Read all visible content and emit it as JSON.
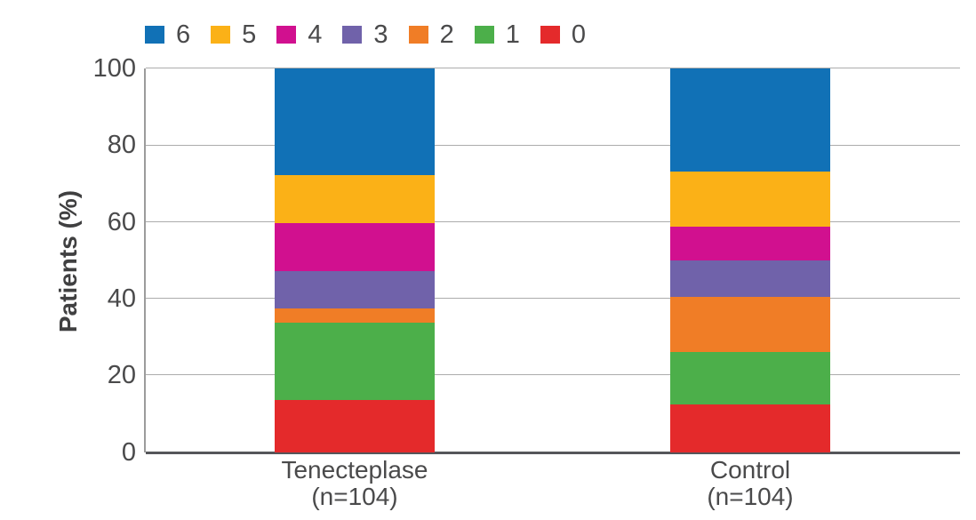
{
  "chart_data": {
    "type": "bar",
    "variant": "stacked-percentage",
    "title": "",
    "xlabel": "",
    "ylabel": "Patients (%)",
    "ylim": [
      0,
      100
    ],
    "y_ticks": [
      0,
      20,
      40,
      60,
      80,
      100
    ],
    "grid": true,
    "legend_position": "top",
    "legend_order": [
      "6",
      "5",
      "4",
      "3",
      "2",
      "1",
      "0"
    ],
    "categories": [
      {
        "label": "Tenecteplase",
        "sublabel": "(n=104)"
      },
      {
        "label": "Control",
        "sublabel": "(n=104)"
      }
    ],
    "series": [
      {
        "name": "0",
        "color": "#e42a2b",
        "values": [
          13.5,
          12.5
        ]
      },
      {
        "name": "1",
        "color": "#4caf4a",
        "values": [
          20.2,
          13.5
        ]
      },
      {
        "name": "2",
        "color": "#f07d26",
        "values": [
          3.8,
          14.4
        ]
      },
      {
        "name": "3",
        "color": "#7062aa",
        "values": [
          9.6,
          9.6
        ]
      },
      {
        "name": "4",
        "color": "#d1108f",
        "values": [
          12.5,
          8.7
        ]
      },
      {
        "name": "5",
        "color": "#fbb117",
        "values": [
          12.5,
          14.4
        ]
      },
      {
        "name": "6",
        "color": "#1171b6",
        "values": [
          27.9,
          26.9
        ]
      }
    ],
    "stack_order_bottom_to_top": [
      "0",
      "1",
      "2",
      "3",
      "4",
      "5",
      "6"
    ]
  },
  "style": {
    "background": "#ffffff",
    "text_color": "#4a4a4b",
    "gridline_color": "#acacac",
    "baseline_color": "#55565a",
    "y_axis_line_color": "#9c9c9c"
  }
}
